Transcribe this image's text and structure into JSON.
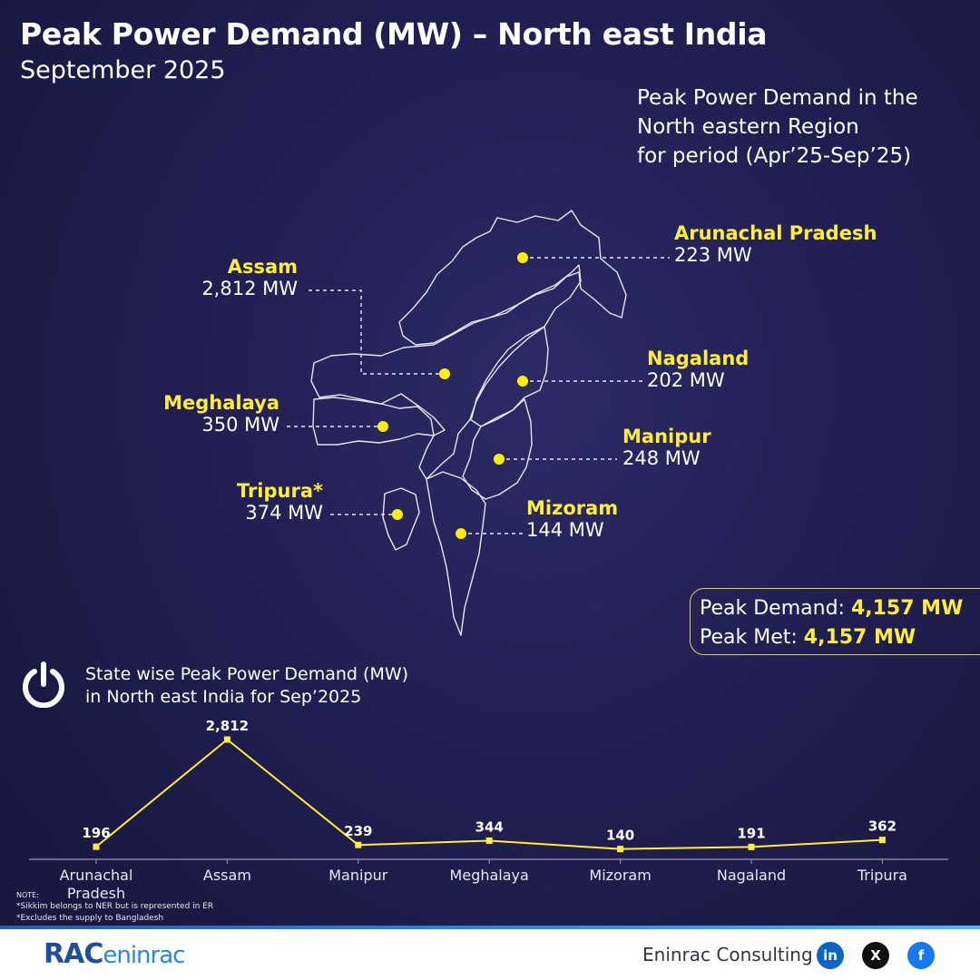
{
  "header": {
    "title": "Peak Power Demand (MW) – North east India",
    "subtitle": "September 2025",
    "period_lines": [
      "Peak Power Demand in the",
      "North eastern Region",
      "for period (Apr’25-Sep’25)"
    ]
  },
  "map_labels": [
    {
      "name": "Arunachal Pradesh",
      "value": "223 MW"
    },
    {
      "name": "Assam",
      "value": "2,812 MW"
    },
    {
      "name": "Nagaland",
      "value": "202 MW"
    },
    {
      "name": "Meghalaya",
      "value": "350 MW"
    },
    {
      "name": "Manipur",
      "value": "248 MW"
    },
    {
      "name": "Tripura*",
      "value": "374 MW"
    },
    {
      "name": "Mizoram",
      "value": "144 MW"
    }
  ],
  "summary": {
    "demand_label": "Peak Demand: ",
    "demand_value": "4,157 MW",
    "met_label": "Peak Met: ",
    "met_value": "4,157 MW"
  },
  "chart_title_lines": [
    "State wise Peak Power Demand (MW)",
    "in North east India for Sep’2025"
  ],
  "chart_data": {
    "type": "line",
    "categories": [
      "Arunachal Pradesh",
      "Assam",
      "Manipur",
      "Meghalaya",
      "Mizoram",
      "Nagaland",
      "Tripura"
    ],
    "category_lines": [
      [
        "Arunachal",
        "Pradesh"
      ],
      [
        "Assam"
      ],
      [
        "Manipur"
      ],
      [
        "Meghalaya"
      ],
      [
        "Mizoram"
      ],
      [
        "Nagaland"
      ],
      [
        "Tripura"
      ]
    ],
    "values": [
      196,
      2812,
      239,
      344,
      140,
      191,
      362
    ],
    "value_labels": [
      "196",
      "2,812",
      "239",
      "344",
      "140",
      "191",
      "362"
    ],
    "grid": false,
    "line_color": "#ffee33"
  },
  "notes": {
    "heading": "NOTE:",
    "lines": [
      "*Sikkim belongs to NER but is represented in ER",
      "*Excludes the supply to Bangladesh"
    ]
  },
  "footer": {
    "logo_main": "RAC",
    "logo_text": "eninrac",
    "company": "Eninrac Consulting",
    "socials": [
      {
        "icon": "linkedin-icon",
        "glyph": "in",
        "color": "#0a66c2"
      },
      {
        "icon": "x-icon",
        "glyph": "X",
        "color": "#111111"
      },
      {
        "icon": "facebook-icon",
        "glyph": "f",
        "color": "#1877f2"
      }
    ]
  },
  "colors": {
    "accent": "#ffee33",
    "background": "#211f52"
  }
}
